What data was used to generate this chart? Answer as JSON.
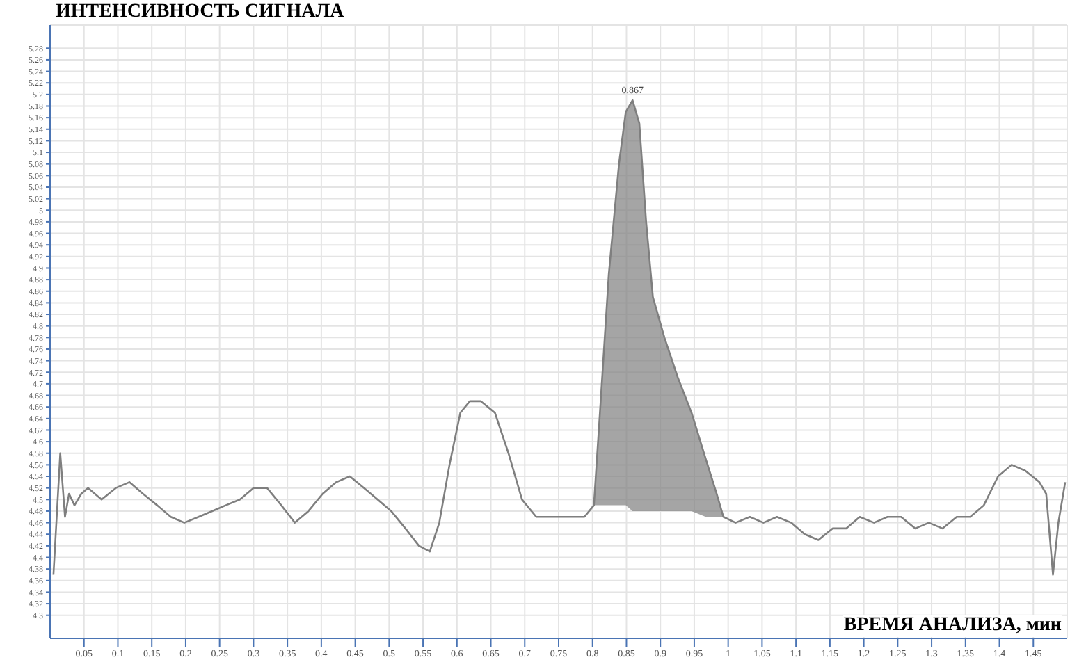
{
  "chart_data": {
    "type": "line",
    "title": "ИНТЕНСИВНОСТЬ СИГНАЛА",
    "xlabel": "ВРЕМЯ АНАЛИЗА, мин",
    "xlim": [
      0,
      1.5
    ],
    "ylim": [
      4.26,
      5.32
    ],
    "xticks": [
      0.05,
      0.1,
      0.15,
      0.2,
      0.25,
      0.3,
      0.35,
      0.4,
      0.45,
      0.5,
      0.55,
      0.6,
      0.65,
      0.7,
      0.75,
      0.8,
      0.85,
      0.9,
      0.95,
      1,
      1.05,
      1.1,
      1.15,
      1.2,
      1.25,
      1.3,
      1.35,
      1.4,
      1.45
    ],
    "yticks": [
      4.3,
      4.32,
      4.34,
      4.36,
      4.38,
      4.4,
      4.42,
      4.44,
      4.46,
      4.48,
      4.5,
      4.52,
      4.54,
      4.56,
      4.58,
      4.6,
      4.62,
      4.64,
      4.66,
      4.68,
      4.7,
      4.72,
      4.74,
      4.76,
      4.78,
      4.8,
      4.82,
      4.84,
      4.86,
      4.88,
      4.9,
      4.92,
      4.94,
      4.96,
      4.98,
      5,
      5.02,
      5.04,
      5.06,
      5.08,
      5.1,
      5.12,
      5.14,
      5.16,
      5.18,
      5.2,
      5.22,
      5.24,
      5.26,
      5.28
    ],
    "grid": true,
    "legend": false,
    "marker": "none",
    "annotations": [
      {
        "text": "0.867",
        "x": 0.859,
        "y": 5.19
      }
    ],
    "series": [
      {
        "color": "#7f7f7f",
        "x": [
          0.005,
          0.015,
          0.022,
          0.028,
          0.036,
          0.046,
          0.056,
          0.076,
          0.097,
          0.117,
          0.137,
          0.158,
          0.178,
          0.198,
          0.219,
          0.239,
          0.259,
          0.28,
          0.3,
          0.32,
          0.341,
          0.361,
          0.381,
          0.402,
          0.422,
          0.442,
          0.463,
          0.483,
          0.503,
          0.524,
          0.544,
          0.56,
          0.574,
          0.589,
          0.605,
          0.619,
          0.635,
          0.656,
          0.676,
          0.696,
          0.717,
          0.737,
          0.767,
          0.788,
          0.802,
          0.812,
          0.824,
          0.839,
          0.849,
          0.859,
          0.869,
          0.879,
          0.889,
          0.906,
          0.926,
          0.946,
          0.967,
          0.983,
          0.993,
          1.011,
          1.032,
          1.052,
          1.072,
          1.093,
          1.113,
          1.133,
          1.154,
          1.174,
          1.194,
          1.215,
          1.235,
          1.255,
          1.276,
          1.296,
          1.316,
          1.337,
          1.357,
          1.377,
          1.398,
          1.418,
          1.438,
          1.459,
          1.469,
          1.479,
          1.487,
          1.497
        ],
        "values": [
          4.37,
          4.58,
          4.47,
          4.51,
          4.49,
          4.51,
          4.52,
          4.5,
          4.52,
          4.53,
          4.51,
          4.49,
          4.47,
          4.46,
          4.47,
          4.48,
          4.49,
          4.5,
          4.52,
          4.52,
          4.49,
          4.46,
          4.48,
          4.51,
          4.53,
          4.54,
          4.52,
          4.5,
          4.48,
          4.45,
          4.42,
          4.41,
          4.46,
          4.56,
          4.65,
          4.67,
          4.67,
          4.65,
          4.58,
          4.5,
          4.47,
          4.47,
          4.47,
          4.47,
          4.49,
          4.67,
          4.89,
          5.08,
          5.17,
          5.19,
          5.15,
          4.98,
          4.85,
          4.78,
          4.71,
          4.65,
          4.57,
          4.51,
          4.47,
          4.46,
          4.47,
          4.46,
          4.47,
          4.46,
          4.44,
          4.43,
          4.45,
          4.45,
          4.47,
          4.46,
          4.47,
          4.47,
          4.45,
          4.46,
          4.45,
          4.47,
          4.47,
          4.49,
          4.54,
          4.56,
          4.55,
          4.53,
          4.51,
          4.37,
          4.46,
          4.53
        ],
        "lower": [
          null,
          null,
          null,
          null,
          null,
          null,
          null,
          null,
          null,
          null,
          null,
          null,
          null,
          null,
          null,
          null,
          null,
          null,
          null,
          null,
          null,
          null,
          null,
          null,
          null,
          null,
          null,
          null,
          null,
          null,
          null,
          null,
          null,
          null,
          null,
          null,
          null,
          null,
          null,
          null,
          null,
          null,
          null,
          null,
          4.49,
          4.49,
          4.49,
          4.49,
          4.49,
          4.48,
          4.48,
          4.48,
          4.48,
          4.48,
          4.48,
          4.48,
          4.47,
          4.47,
          4.47,
          null,
          null,
          null,
          null,
          null,
          null,
          null,
          null,
          null,
          null,
          null,
          null,
          null,
          null,
          null,
          null,
          null,
          null,
          null,
          null,
          null,
          null,
          null,
          null,
          null,
          null,
          null
        ],
        "upper": [
          null,
          null,
          null,
          null,
          null,
          null,
          null,
          null,
          null,
          null,
          null,
          null,
          null,
          null,
          null,
          null,
          null,
          null,
          null,
          null,
          null,
          null,
          null,
          null,
          null,
          null,
          null,
          null,
          null,
          null,
          null,
          null,
          null,
          null,
          null,
          null,
          null,
          null,
          null,
          null,
          null,
          null,
          null,
          null,
          4.49,
          4.67,
          4.89,
          5.08,
          5.17,
          5.19,
          5.15,
          4.98,
          4.85,
          4.78,
          4.71,
          4.65,
          4.57,
          4.51,
          4.47,
          null,
          null,
          null,
          null,
          null,
          null,
          null,
          null,
          null,
          null,
          null,
          null,
          null,
          null,
          null,
          null,
          null,
          null,
          null,
          null,
          null,
          null,
          null,
          null,
          null,
          null,
          null
        ]
      }
    ]
  }
}
